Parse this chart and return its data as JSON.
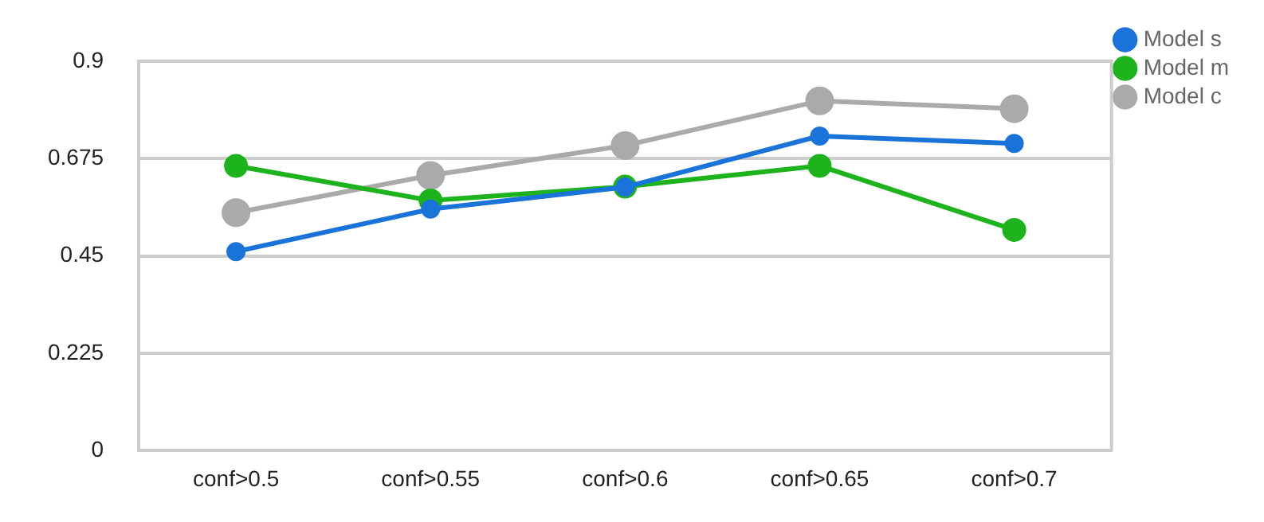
{
  "chart_data": {
    "type": "line",
    "categories": [
      "conf>0.5",
      "conf>0.55",
      "conf>0.6",
      "conf>0.65",
      "conf>0.7"
    ],
    "series": [
      {
        "name": "Model s",
        "color": "#1a73d9",
        "values": [
          0.46,
          0.558,
          0.609,
          0.727,
          0.71
        ]
      },
      {
        "name": "Model m",
        "color": "#1db31d",
        "values": [
          0.658,
          0.578,
          0.61,
          0.658,
          0.51
        ]
      },
      {
        "name": "Model c",
        "color": "#aaaaaa",
        "values": [
          0.55,
          0.636,
          0.705,
          0.808,
          0.79
        ]
      }
    ],
    "ylim": [
      0,
      0.9
    ],
    "yticks": [
      0,
      0.225,
      0.45,
      0.675,
      0.9
    ],
    "grid": "y",
    "legend": "top right",
    "marker": "circle",
    "line_style": "solid"
  }
}
